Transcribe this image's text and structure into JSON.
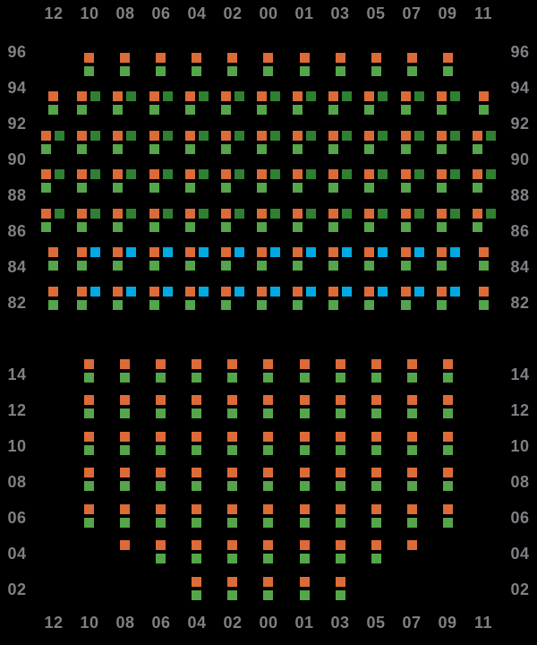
{
  "colors": {
    "orange": "#DC6B38",
    "green": "#55A54A",
    "dark_green": "#2F8030",
    "blue": "#00A9E2",
    "bar_border": "#29ABE2",
    "bar_fill": "#DCEFFB",
    "cell_bg": "#FFFFFF",
    "empty_bg": "#E3E3E6",
    "grid_line": "#D5D5D8",
    "grid_border": "#F2F2F2",
    "label": "#7E8084",
    "background": "#000000"
  },
  "columns": [
    "12",
    "10",
    "08",
    "06",
    "04",
    "02",
    "00",
    "01",
    "03",
    "05",
    "07",
    "09",
    "11"
  ],
  "patterns": {
    "empty": [],
    "og": [
      [
        "orange"
      ],
      [
        "green"
      ]
    ],
    "odg": [
      [
        "orange",
        "dark_green"
      ],
      [
        "green",
        null
      ]
    ],
    "obg": [
      [
        "orange",
        "blue"
      ],
      [
        "green",
        null
      ]
    ],
    "o": [
      [
        "orange"
      ]
    ]
  },
  "top_grid": {
    "rows": [
      {
        "label": "96",
        "cells": [
          "empty",
          "empty",
          "empty",
          "empty",
          "empty",
          "empty",
          "empty",
          "empty",
          "empty",
          "empty",
          "empty",
          "empty",
          "empty"
        ]
      },
      {
        "label": "94",
        "cells": [
          "empty",
          "og",
          "og",
          "og",
          "og",
          "og",
          "og",
          "og",
          "og",
          "og",
          "og",
          "og",
          "empty"
        ]
      },
      {
        "label": "92",
        "cells": [
          "og",
          "odg",
          "odg",
          "odg",
          "odg",
          "odg",
          "odg",
          "odg",
          "odg",
          "odg",
          "odg",
          "odg",
          "og"
        ]
      },
      {
        "label": "90",
        "cells": [
          "odg",
          "odg",
          "odg",
          "odg",
          "odg",
          "odg",
          "odg",
          "odg",
          "odg",
          "odg",
          "odg",
          "odg",
          "odg"
        ]
      },
      {
        "label": "88",
        "cells": [
          "odg",
          "odg",
          "odg",
          "odg",
          "odg",
          "odg",
          "odg",
          "odg",
          "odg",
          "odg",
          "odg",
          "odg",
          "odg"
        ]
      },
      {
        "label": "86",
        "cells": [
          "odg",
          "odg",
          "odg",
          "odg",
          "odg",
          "odg",
          "odg",
          "odg",
          "odg",
          "odg",
          "odg",
          "odg",
          "odg"
        ]
      },
      {
        "label": "84",
        "cells": [
          "og",
          "obg",
          "obg",
          "obg",
          "obg",
          "obg",
          "obg",
          "obg",
          "obg",
          "obg",
          "obg",
          "obg",
          "og"
        ]
      },
      {
        "label": "82",
        "cells": [
          "og",
          "obg",
          "obg",
          "obg",
          "obg",
          "obg",
          "obg",
          "obg",
          "obg",
          "obg",
          "obg",
          "obg",
          "og"
        ]
      }
    ]
  },
  "divider_bar": {
    "segment_widths": [
      200,
      120,
      200
    ]
  },
  "bottom_grid": {
    "rows": [
      {
        "label": "14",
        "cells": [
          "empty",
          "og",
          "og",
          "og",
          "og",
          "og",
          "og",
          "og",
          "og",
          "og",
          "og",
          "og",
          "empty"
        ]
      },
      {
        "label": "12",
        "cells": [
          "empty",
          "og",
          "og",
          "og",
          "og",
          "og",
          "og",
          "og",
          "og",
          "og",
          "og",
          "og",
          "empty"
        ]
      },
      {
        "label": "10",
        "cells": [
          "empty",
          "og",
          "og",
          "og",
          "og",
          "og",
          "og",
          "og",
          "og",
          "og",
          "og",
          "og",
          "empty"
        ]
      },
      {
        "label": "08",
        "cells": [
          "empty",
          "og",
          "og",
          "og",
          "og",
          "og",
          "og",
          "og",
          "og",
          "og",
          "og",
          "og",
          "empty"
        ]
      },
      {
        "label": "06",
        "cells": [
          "empty",
          "og",
          "og",
          "og",
          "og",
          "og",
          "og",
          "og",
          "og",
          "og",
          "og",
          "og",
          "empty"
        ]
      },
      {
        "label": "04",
        "cells": [
          "empty",
          "empty",
          "o",
          "og",
          "og",
          "og",
          "og",
          "og",
          "og",
          "og",
          "o",
          "empty",
          "empty"
        ]
      },
      {
        "label": "02",
        "cells": [
          "empty",
          "empty",
          "empty",
          "empty",
          "og",
          "og",
          "og",
          "og",
          "og",
          "empty",
          "empty",
          "empty",
          "empty"
        ]
      }
    ]
  },
  "layout_labels": {
    "top_header_side": "top",
    "bottom_header_side": "bottom"
  }
}
